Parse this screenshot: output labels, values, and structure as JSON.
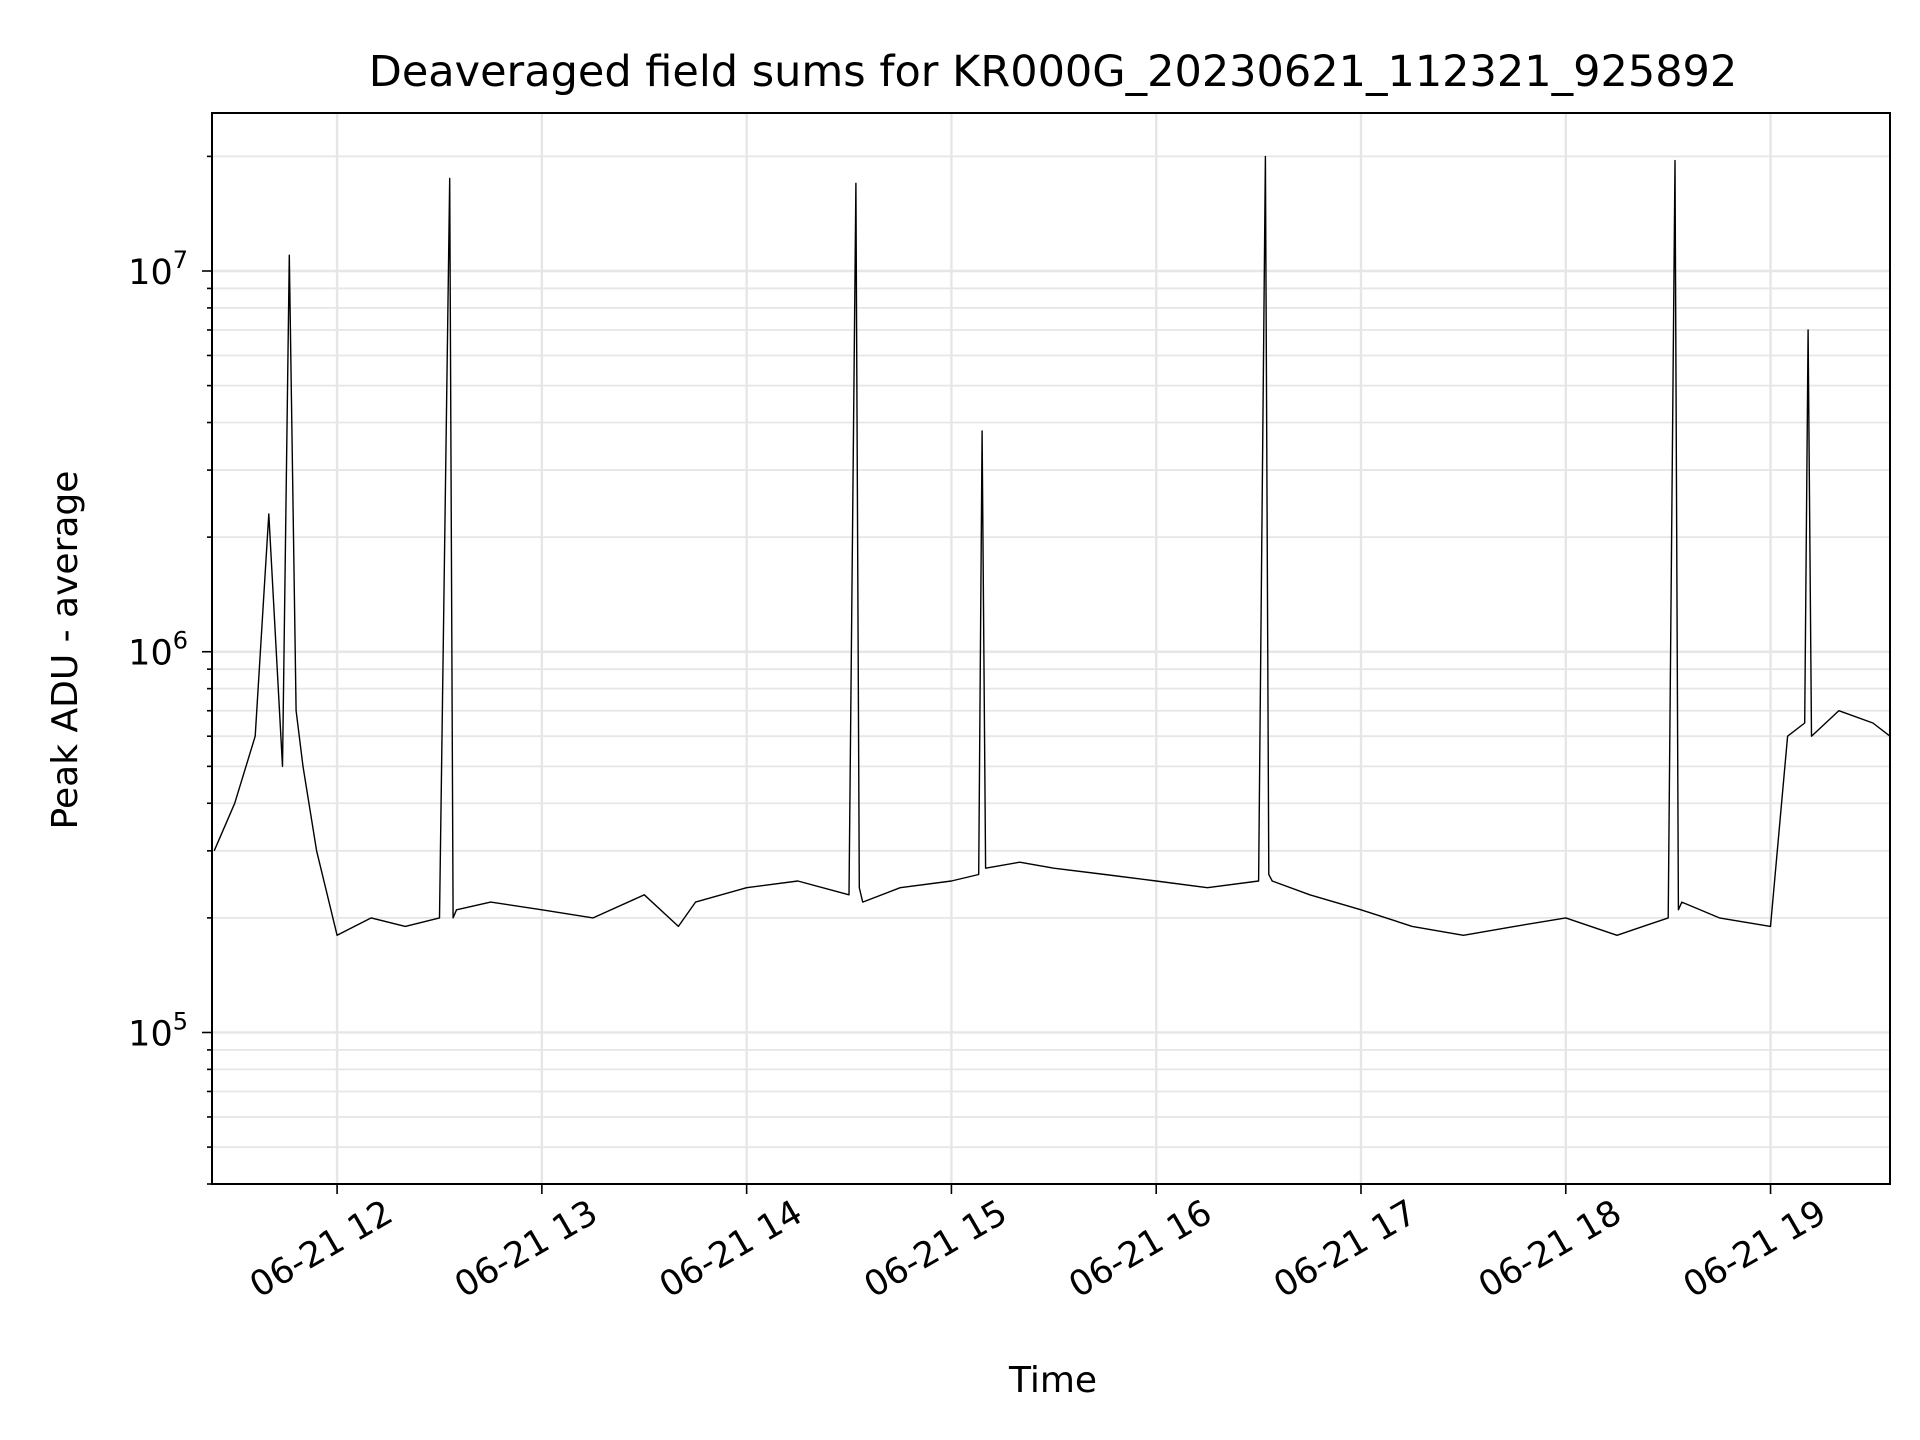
{
  "chart_data": {
    "type": "line",
    "title": "Deaveraged field sums for KR000G_20230621_112321_925892",
    "xlabel": "Time",
    "ylabel": "Peak ADU - average",
    "y_scale": "log",
    "xlim": [
      "2023-06-21T11:23:21",
      "2023-06-21T19:35:00"
    ],
    "ylim": [
      40000,
      26000000
    ],
    "grid": true,
    "x_ticks": [
      {
        "value": "2023-06-21T12:00:00",
        "label": "06-21 12"
      },
      {
        "value": "2023-06-21T13:00:00",
        "label": "06-21 13"
      },
      {
        "value": "2023-06-21T14:00:00",
        "label": "06-21 14"
      },
      {
        "value": "2023-06-21T15:00:00",
        "label": "06-21 15"
      },
      {
        "value": "2023-06-21T16:00:00",
        "label": "06-21 16"
      },
      {
        "value": "2023-06-21T17:00:00",
        "label": "06-21 17"
      },
      {
        "value": "2023-06-21T18:00:00",
        "label": "06-21 18"
      },
      {
        "value": "2023-06-21T19:00:00",
        "label": "06-21 19"
      }
    ],
    "y_ticks": [
      {
        "value": 100000,
        "base": "10",
        "exponent": "5"
      },
      {
        "value": 1000000,
        "base": "10",
        "exponent": "6"
      },
      {
        "value": 10000000,
        "base": "10",
        "exponent": "7"
      }
    ],
    "line_color": "#000000",
    "series": [
      {
        "x": [
          "2023-06-21T11:24:00",
          "2023-06-21T11:30:00",
          "2023-06-21T11:36:00",
          "2023-06-21T11:40:00",
          "2023-06-21T11:44:00",
          "2023-06-21T11:46:00",
          "2023-06-21T11:48:00",
          "2023-06-21T11:50:00",
          "2023-06-21T11:54:00",
          "2023-06-21T12:00:00",
          "2023-06-21T12:10:00",
          "2023-06-21T12:20:00",
          "2023-06-21T12:30:00",
          "2023-06-21T12:33:00",
          "2023-06-21T12:34:00",
          "2023-06-21T12:35:00",
          "2023-06-21T12:45:00",
          "2023-06-21T13:00:00",
          "2023-06-21T13:15:00",
          "2023-06-21T13:30:00",
          "2023-06-21T13:40:00",
          "2023-06-21T13:45:00",
          "2023-06-21T14:00:00",
          "2023-06-21T14:15:00",
          "2023-06-21T14:30:00",
          "2023-06-21T14:32:00",
          "2023-06-21T14:33:00",
          "2023-06-21T14:34:00",
          "2023-06-21T14:45:00",
          "2023-06-21T15:00:00",
          "2023-06-21T15:08:00",
          "2023-06-21T15:09:00",
          "2023-06-21T15:10:00",
          "2023-06-21T15:20:00",
          "2023-06-21T15:30:00",
          "2023-06-21T15:45:00",
          "2023-06-21T16:00:00",
          "2023-06-21T16:15:00",
          "2023-06-21T16:30:00",
          "2023-06-21T16:32:00",
          "2023-06-21T16:33:00",
          "2023-06-21T16:34:00",
          "2023-06-21T16:45:00",
          "2023-06-21T17:00:00",
          "2023-06-21T17:15:00",
          "2023-06-21T17:30:00",
          "2023-06-21T17:45:00",
          "2023-06-21T18:00:00",
          "2023-06-21T18:15:00",
          "2023-06-21T18:30:00",
          "2023-06-21T18:32:00",
          "2023-06-21T18:33:00",
          "2023-06-21T18:34:00",
          "2023-06-21T18:45:00",
          "2023-06-21T19:00:00",
          "2023-06-21T19:05:00",
          "2023-06-21T19:10:00",
          "2023-06-21T19:11:00",
          "2023-06-21T19:12:00",
          "2023-06-21T19:20:00",
          "2023-06-21T19:30:00",
          "2023-06-21T19:35:00"
        ],
        "values": [
          300000,
          400000,
          600000,
          2300000,
          500000,
          11000000,
          700000,
          500000,
          300000,
          180000,
          200000,
          190000,
          200000,
          17500000,
          200000,
          210000,
          220000,
          210000,
          200000,
          230000,
          190000,
          220000,
          240000,
          250000,
          230000,
          17000000,
          240000,
          220000,
          240000,
          250000,
          260000,
          3800000,
          270000,
          280000,
          270000,
          260000,
          250000,
          240000,
          250000,
          20000000,
          260000,
          250000,
          230000,
          210000,
          190000,
          180000,
          190000,
          200000,
          180000,
          200000,
          19500000,
          210000,
          220000,
          200000,
          190000,
          600000,
          650000,
          7000000,
          600000,
          700000,
          650000,
          600000
        ]
      }
    ]
  }
}
